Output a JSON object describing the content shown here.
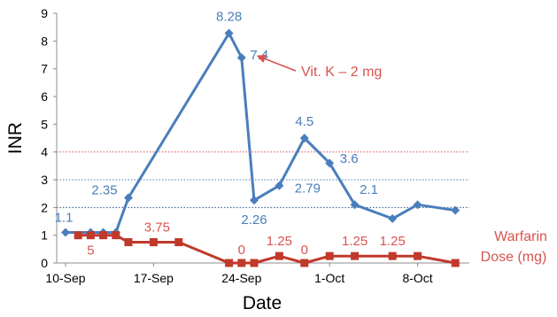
{
  "chart_data": {
    "type": "line",
    "xlabel": "Date",
    "ylabel": "INR",
    "ylim": [
      0,
      9
    ],
    "yticks": [
      0,
      1,
      2,
      3,
      4,
      5,
      6,
      7,
      8,
      9
    ],
    "xaxis": {
      "start": "2013-09-10",
      "end": "2013-10-13",
      "ticks": [
        "10-Sep",
        "17-Sep",
        "24-Sep",
        "1-Oct",
        "8-Oct"
      ]
    },
    "grid": false,
    "reference_lines": [
      {
        "y": 4,
        "color": "#d9534f",
        "style": "dotted"
      },
      {
        "y": 3,
        "color": "#4a7ebb",
        "style": "dotted"
      },
      {
        "y": 2,
        "color": "#2a4d8f",
        "style": "dotted"
      }
    ],
    "series": [
      {
        "key": "inr",
        "color": "#4a7ebb",
        "marker": "diamond",
        "points": [
          {
            "x": "2013-09-10",
            "y": 1.1
          },
          {
            "x": "2013-09-12",
            "y": 1.1
          },
          {
            "x": "2013-09-13",
            "y": 1.1
          },
          {
            "x": "2013-09-14",
            "y": 1.1
          },
          {
            "x": "2013-09-15",
            "y": 2.35
          },
          {
            "x": "2013-09-23",
            "y": 8.28
          },
          {
            "x": "2013-09-24",
            "y": 7.4
          },
          {
            "x": "2013-09-25",
            "y": 2.26
          },
          {
            "x": "2013-09-27",
            "y": 2.79
          },
          {
            "x": "2013-09-29",
            "y": 4.5
          },
          {
            "x": "2013-10-01",
            "y": 3.6
          },
          {
            "x": "2013-10-03",
            "y": 2.1
          },
          {
            "x": "2013-10-06",
            "y": 1.6
          },
          {
            "x": "2013-10-08",
            "y": 2.1
          },
          {
            "x": "2013-10-11",
            "y": 1.9
          }
        ]
      },
      {
        "key": "dose",
        "name": "Warfarin Dose (mg)",
        "color": "#c0392b",
        "marker": "square",
        "points": [
          {
            "x": "2013-09-11",
            "y": 1.0
          },
          {
            "x": "2013-09-12",
            "y": 1.0
          },
          {
            "x": "2013-09-13",
            "y": 1.0
          },
          {
            "x": "2013-09-14",
            "y": 1.0
          },
          {
            "x": "2013-09-15",
            "y": 0.75
          },
          {
            "x": "2013-09-17",
            "y": 0.75
          },
          {
            "x": "2013-09-19",
            "y": 0.75
          },
          {
            "x": "2013-09-23",
            "y": 0
          },
          {
            "x": "2013-09-24",
            "y": 0
          },
          {
            "x": "2013-09-25",
            "y": 0
          },
          {
            "x": "2013-09-27",
            "y": 0.25
          },
          {
            "x": "2013-09-29",
            "y": 0
          },
          {
            "x": "2013-10-01",
            "y": 0.25
          },
          {
            "x": "2013-10-03",
            "y": 0.25
          },
          {
            "x": "2013-10-06",
            "y": 0.25
          },
          {
            "x": "2013-10-08",
            "y": 0.25
          },
          {
            "x": "2013-10-11",
            "y": 0
          }
        ]
      }
    ],
    "data_labels": {
      "inr": [
        {
          "text": "1.1",
          "x": "2013-09-10",
          "y": 1.1
        },
        {
          "text": "2.35",
          "x": "2013-09-15",
          "y": 2.35
        },
        {
          "text": "8.28",
          "x": "2013-09-23",
          "y": 8.28
        },
        {
          "text": "7.4",
          "x": "2013-09-24",
          "y": 7.4
        },
        {
          "text": "2.26",
          "x": "2013-09-25",
          "y": 2.26
        },
        {
          "text": "2.79",
          "x": "2013-09-27",
          "y": 2.79
        },
        {
          "text": "4.5",
          "x": "2013-09-29",
          "y": 4.5
        },
        {
          "text": "3.6",
          "x": "2013-10-01",
          "y": 3.6
        },
        {
          "text": "2.1",
          "x": "2013-10-03",
          "y": 2.1
        }
      ],
      "dose": [
        {
          "text": "5",
          "x": "2013-09-12",
          "y": 1.0
        },
        {
          "text": "3.75",
          "x": "2013-09-17",
          "y": 0.75
        },
        {
          "text": "0",
          "x": "2013-09-24",
          "y": 0
        },
        {
          "text": "1.25",
          "x": "2013-09-27",
          "y": 0.25
        },
        {
          "text": "0",
          "x": "2013-09-29",
          "y": 0
        },
        {
          "text": "1.25",
          "x": "2013-10-03",
          "y": 0.25
        },
        {
          "text": "1.25",
          "x": "2013-10-06",
          "y": 0.25
        }
      ]
    },
    "annotation": {
      "text": "Vit. K – 2 mg",
      "color": "#d9534f",
      "points_to": {
        "x": "2013-09-24",
        "y": 7.4
      }
    },
    "legend": {
      "entries": [
        {
          "line1": "Warfarin",
          "line2": "Dose (mg)",
          "color": "#d9534f"
        }
      ],
      "placement": "bottom-right"
    }
  }
}
